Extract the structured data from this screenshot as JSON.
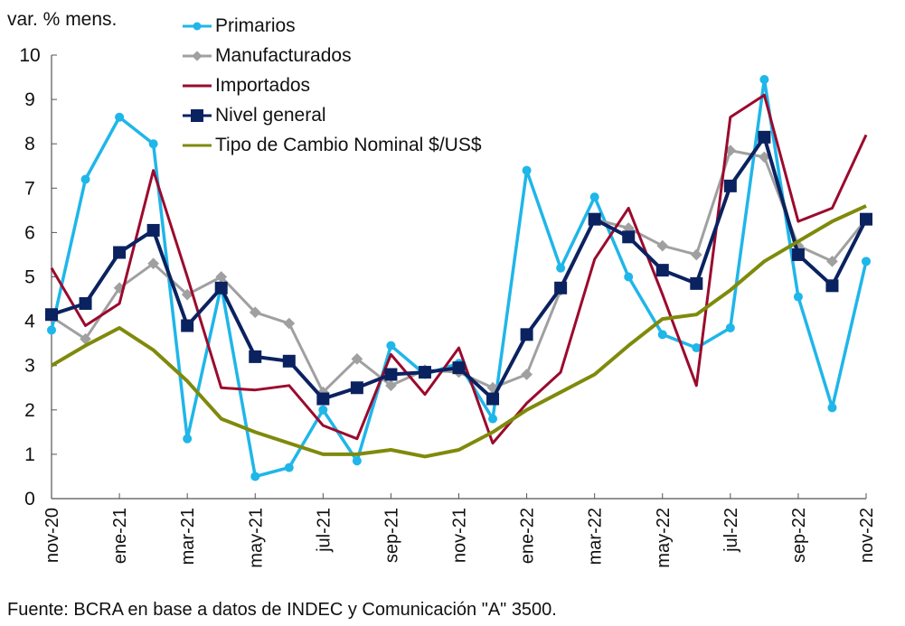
{
  "chart_data": {
    "type": "line",
    "title": "",
    "ylabel": "var. % mens.",
    "xlabel": "",
    "ylim": [
      0,
      10
    ],
    "yticks": [
      0,
      1,
      2,
      3,
      4,
      5,
      6,
      7,
      8,
      9,
      10
    ],
    "grid": false,
    "legend_position": "top-center",
    "x": [
      "nov-20",
      "dic-20",
      "ene-21",
      "feb-21",
      "mar-21",
      "abr-21",
      "may-21",
      "jun-21",
      "jul-21",
      "ago-21",
      "sep-21",
      "oct-21",
      "nov-21",
      "dic-21",
      "ene-22",
      "feb-22",
      "mar-22",
      "abr-22",
      "may-22",
      "jun-22",
      "jul-22",
      "ago-22",
      "sep-22",
      "oct-22",
      "nov-22"
    ],
    "xtick_labels": [
      "nov-20",
      "ene-21",
      "mar-21",
      "may-21",
      "jul-21",
      "sep-21",
      "nov-21",
      "ene-22",
      "mar-22",
      "may-22",
      "jul-22",
      "sep-22",
      "nov-22"
    ],
    "series": [
      {
        "name": "Primarios",
        "color": "#1fb6e9",
        "marker": "circle",
        "values": [
          3.8,
          7.2,
          8.6,
          8.0,
          1.35,
          4.8,
          0.5,
          0.7,
          2.0,
          0.85,
          3.45,
          2.8,
          3.05,
          1.8,
          7.4,
          5.2,
          6.8,
          5.0,
          3.7,
          3.4,
          3.85,
          9.45,
          4.55,
          2.05,
          5.35
        ]
      },
      {
        "name": "Manufacturados",
        "color": "#a0a0a0",
        "marker": "diamond",
        "values": [
          4.1,
          3.6,
          4.75,
          5.3,
          4.6,
          5.0,
          4.2,
          3.95,
          2.4,
          3.15,
          2.55,
          2.9,
          2.85,
          2.5,
          2.8,
          4.7,
          6.3,
          6.1,
          5.7,
          5.5,
          7.85,
          7.7,
          5.7,
          5.35,
          6.3
        ]
      },
      {
        "name": "Importados",
        "color": "#9b0a2d",
        "marker": "none",
        "values": [
          5.2,
          3.9,
          4.4,
          7.4,
          5.0,
          2.5,
          2.45,
          2.55,
          1.65,
          1.35,
          3.25,
          2.35,
          3.4,
          1.25,
          2.15,
          2.85,
          5.4,
          6.55,
          4.6,
          2.55,
          8.6,
          9.1,
          6.25,
          6.55,
          8.2
        ]
      },
      {
        "name": "Nivel general",
        "color": "#0b2260",
        "marker": "square",
        "values": [
          4.15,
          4.4,
          5.55,
          6.05,
          3.9,
          4.75,
          3.2,
          3.1,
          2.25,
          2.5,
          2.8,
          2.85,
          2.95,
          2.25,
          3.7,
          4.75,
          6.3,
          5.9,
          5.15,
          4.85,
          7.05,
          8.15,
          5.5,
          4.8,
          6.3
        ]
      },
      {
        "name": "Tipo de Cambio Nominal $/US$",
        "color": "#7f8a0b",
        "marker": "none",
        "values": [
          3.0,
          3.45,
          3.85,
          3.35,
          2.65,
          1.8,
          1.5,
          1.25,
          1.0,
          1.0,
          1.1,
          0.95,
          1.1,
          1.5,
          2.0,
          2.4,
          2.8,
          3.45,
          4.05,
          4.15,
          4.7,
          5.35,
          5.8,
          6.25,
          6.6
        ]
      }
    ]
  },
  "unit_label": "var. % mens.",
  "footer": "Fuente: BCRA en base a datos de INDEC y Comunicación \"A\" 3500."
}
